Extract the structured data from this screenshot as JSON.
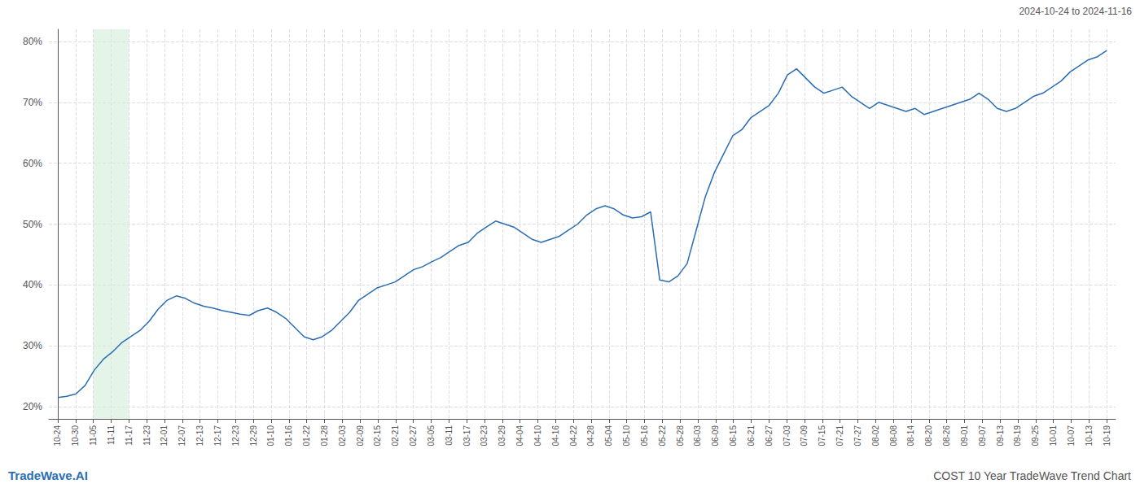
{
  "chart_data": {
    "type": "line",
    "title": "COST 10 Year TradeWave Trend Chart",
    "subtitle": "2024-10-24 to 2024-11-16",
    "annotations": [
      "TradeWave.AI"
    ],
    "color": "#2a6db5",
    "grid": true,
    "highlight": {
      "start": 2,
      "end": 4,
      "color": "#d4edda"
    },
    "xlim": [
      -0.5,
      59.5
    ],
    "xticks": [
      {
        "value": 0,
        "label": "10-24"
      },
      {
        "value": 1,
        "label": "10-30"
      },
      {
        "value": 2,
        "label": "11-05"
      },
      {
        "value": 3,
        "label": "11-11"
      },
      {
        "value": 4,
        "label": "11-17"
      },
      {
        "value": 5,
        "label": "11-23"
      },
      {
        "value": 6,
        "label": "12-01"
      },
      {
        "value": 7,
        "label": "12-07"
      },
      {
        "value": 8,
        "label": "12-13"
      },
      {
        "value": 9,
        "label": "12-17"
      },
      {
        "value": 10,
        "label": "12-23"
      },
      {
        "value": 11,
        "label": "12-29"
      },
      {
        "value": 12,
        "label": "01-10"
      },
      {
        "value": 13,
        "label": "01-16"
      },
      {
        "value": 14,
        "label": "01-22"
      },
      {
        "value": 15,
        "label": "01-28"
      },
      {
        "value": 16,
        "label": "02-03"
      },
      {
        "value": 17,
        "label": "02-09"
      },
      {
        "value": 18,
        "label": "02-15"
      },
      {
        "value": 19,
        "label": "02-21"
      },
      {
        "value": 20,
        "label": "02-27"
      },
      {
        "value": 21,
        "label": "03-05"
      },
      {
        "value": 22,
        "label": "03-11"
      },
      {
        "value": 23,
        "label": "03-17"
      },
      {
        "value": 24,
        "label": "03-23"
      },
      {
        "value": 25,
        "label": "03-29"
      },
      {
        "value": 26,
        "label": "04-04"
      },
      {
        "value": 27,
        "label": "04-10"
      },
      {
        "value": 28,
        "label": "04-16"
      },
      {
        "value": 29,
        "label": "04-22"
      },
      {
        "value": 30,
        "label": "04-28"
      },
      {
        "value": 31,
        "label": "05-04"
      },
      {
        "value": 32,
        "label": "05-10"
      },
      {
        "value": 33,
        "label": "05-16"
      },
      {
        "value": 34,
        "label": "05-22"
      },
      {
        "value": 35,
        "label": "05-28"
      },
      {
        "value": 36,
        "label": "06-03"
      },
      {
        "value": 37,
        "label": "06-09"
      },
      {
        "value": 38,
        "label": "06-15"
      },
      {
        "value": 39,
        "label": "06-21"
      },
      {
        "value": 40,
        "label": "06-27"
      },
      {
        "value": 41,
        "label": "07-03"
      },
      {
        "value": 42,
        "label": "07-09"
      },
      {
        "value": 43,
        "label": "07-15"
      },
      {
        "value": 44,
        "label": "07-21"
      },
      {
        "value": 45,
        "label": "07-27"
      },
      {
        "value": 46,
        "label": "08-02"
      },
      {
        "value": 47,
        "label": "08-08"
      },
      {
        "value": 48,
        "label": "08-14"
      },
      {
        "value": 49,
        "label": "08-20"
      },
      {
        "value": 50,
        "label": "08-26"
      },
      {
        "value": 51,
        "label": "09-01"
      },
      {
        "value": 52,
        "label": "09-07"
      },
      {
        "value": 53,
        "label": "09-13"
      },
      {
        "value": 54,
        "label": "09-19"
      },
      {
        "value": 55,
        "label": "09-25"
      },
      {
        "value": 56,
        "label": "10-01"
      },
      {
        "value": 57,
        "label": "10-07"
      },
      {
        "value": 58,
        "label": "10-13"
      },
      {
        "value": 59,
        "label": "10-19"
      }
    ],
    "ylim": [
      18,
      82
    ],
    "yticks": [
      {
        "value": 20,
        "label": "20%"
      },
      {
        "value": 30,
        "label": "30%"
      },
      {
        "value": 40,
        "label": "40%"
      },
      {
        "value": 50,
        "label": "50%"
      },
      {
        "value": 60,
        "label": "60%"
      },
      {
        "value": 70,
        "label": "70%"
      },
      {
        "value": 80,
        "label": "80%"
      }
    ],
    "x": [
      0,
      0.513,
      1.0261,
      1.5391,
      2.0522,
      2.5652,
      3.0783,
      3.5913,
      4.1043,
      4.6174,
      5.1304,
      5.6435,
      6.1565,
      6.6696,
      7.1826,
      7.6957,
      8.2087,
      8.7217,
      9.2348,
      9.7478,
      10.2609,
      10.7739,
      11.287,
      11.8,
      12.313,
      12.8261,
      13.3391,
      13.8522,
      14.3652,
      14.8783,
      15.3913,
      15.9043,
      16.4174,
      16.9304,
      17.4435,
      17.9565,
      18.4696,
      18.9826,
      19.4957,
      20.0087,
      20.5217,
      21.0348,
      21.5478,
      22.0609,
      22.5739,
      23.087,
      23.6,
      24.113,
      24.6261,
      25.1391,
      25.6522,
      26.1652,
      26.6783,
      27.1913,
      27.7043,
      28.2174,
      28.7304,
      29.2435,
      29.7565,
      30.2696,
      30.7826,
      31.2957,
      31.8087,
      32.3217,
      32.8348,
      33.3478,
      33.8609,
      34.3739,
      34.887,
      35.4,
      35.913,
      36.4261,
      36.9391,
      37.4522,
      37.9652,
      38.4783,
      38.9913,
      39.5043,
      40.0174,
      40.5304,
      41.0435,
      41.5565,
      42.0696,
      42.5826,
      43.0957,
      43.6087,
      44.1217,
      44.6348,
      45.1478,
      45.6609,
      46.1739,
      46.687,
      47.2,
      47.713,
      48.2261,
      48.7391,
      49.2522,
      49.7652,
      50.2783,
      50.7913,
      51.3043,
      51.8174,
      52.3304,
      52.8435,
      53.3565,
      53.8696,
      54.3826,
      54.8957,
      55.4087,
      55.9217,
      56.4348,
      56.9478,
      57.4609,
      57.9739,
      58.487,
      59
    ],
    "values": [
      21.5,
      21.7,
      22.1,
      23.5,
      26.0,
      27.8,
      29.0,
      30.5,
      31.5,
      32.5,
      34.0,
      36.0,
      37.5,
      38.2,
      37.8,
      37.0,
      36.5,
      36.2,
      35.8,
      35.5,
      35.2,
      35.0,
      35.8,
      36.2,
      35.5,
      34.5,
      33.0,
      31.5,
      31.0,
      31.5,
      32.5,
      34.0,
      35.5,
      37.5,
      38.5,
      39.5,
      40.0,
      40.5,
      41.5,
      42.5,
      43.0,
      43.8,
      44.5,
      45.5,
      46.5,
      47.0,
      48.5,
      49.5,
      50.5,
      50.0,
      49.5,
      48.5,
      47.5,
      47.0,
      47.5,
      48.0,
      49.0,
      50.0,
      51.5,
      52.5,
      53.0,
      52.5,
      51.5,
      51.0,
      51.2,
      52.0,
      40.8,
      40.5,
      41.5,
      43.5,
      49.0,
      54.5,
      58.5,
      61.5,
      64.5,
      65.5,
      67.5,
      68.5,
      69.5,
      71.5,
      74.5,
      75.5,
      74.0,
      72.5,
      71.5,
      72.0,
      72.5,
      71.0,
      70.0,
      69.0,
      70.0,
      69.5,
      69.0,
      68.5,
      69.0,
      68.0,
      68.5,
      69.0,
      69.5,
      70.0,
      70.5,
      71.5,
      70.5,
      69.0,
      68.5,
      69.0,
      70.0,
      71.0,
      71.5,
      72.5,
      73.5,
      75.0,
      76.0,
      77.0,
      77.5,
      78.5
    ]
  }
}
